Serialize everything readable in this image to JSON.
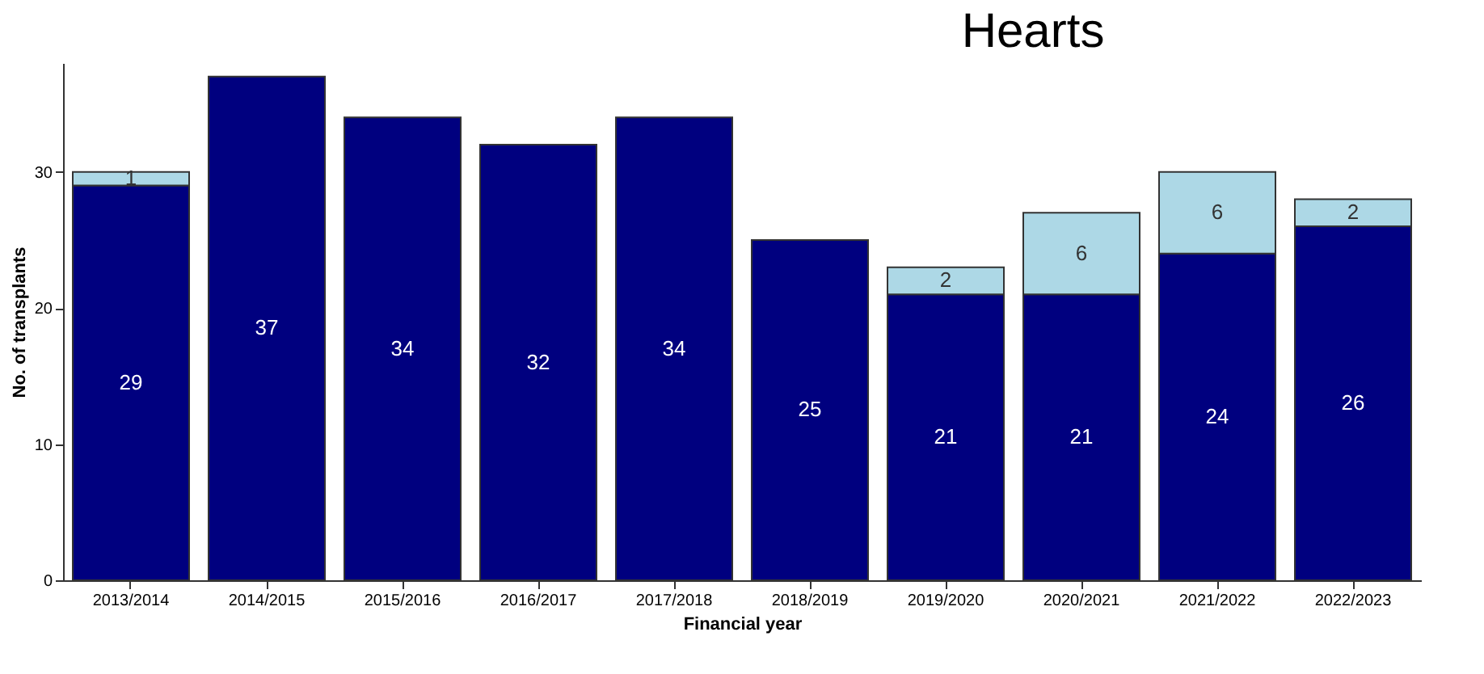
{
  "chart_data": {
    "type": "bar",
    "title": "Hearts",
    "xlabel": "Financial year",
    "ylabel": "No. of transplants",
    "categories": [
      "2013/2014",
      "2014/2015",
      "2015/2016",
      "2016/2017",
      "2017/2018",
      "2018/2019",
      "2019/2020",
      "2020/2021",
      "2021/2022",
      "2022/2023"
    ],
    "series": [
      {
        "color": "#00007f",
        "values": [
          29,
          37,
          34,
          32,
          34,
          25,
          21,
          21,
          24,
          26
        ]
      },
      {
        "color": "#add8e6",
        "values": [
          1,
          null,
          null,
          null,
          null,
          null,
          2,
          6,
          6,
          2
        ]
      }
    ],
    "stacked": true,
    "ylim": [
      0,
      38
    ],
    "yticks": [
      0,
      10,
      20,
      30
    ],
    "data_labels": true,
    "grid": false
  }
}
